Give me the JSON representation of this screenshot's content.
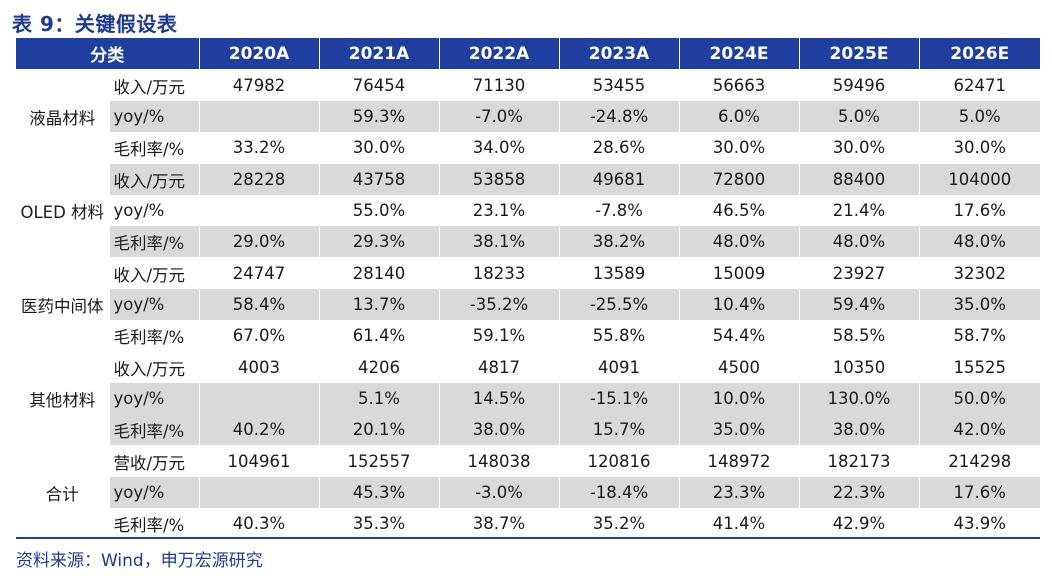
{
  "title": "表 9：关键假设表",
  "header": [
    "分类",
    "2020A",
    "2021A",
    "2022A",
    "2023A",
    "2024E",
    "2025E",
    "2026E"
  ],
  "groups": [
    {
      "name": "液晶材料",
      "rows": [
        {
          "metric": "收入/万元",
          "values": [
            "47982",
            "76454",
            "71130",
            "53455",
            "56663",
            "59496",
            "62471"
          ]
        },
        {
          "metric": "yoy/%",
          "values": [
            "",
            "59.3%",
            "-7.0%",
            "-24.8%",
            "6.0%",
            "5.0%",
            "5.0%"
          ]
        },
        {
          "metric": "毛利率/%",
          "values": [
            "33.2%",
            "30.0%",
            "34.0%",
            "28.6%",
            "30.0%",
            "30.0%",
            "30.0%"
          ]
        }
      ]
    },
    {
      "name": "OLED 材料",
      "rows": [
        {
          "metric": "收入/万元",
          "values": [
            "28228",
            "43758",
            "53858",
            "49681",
            "72800",
            "88400",
            "104000"
          ]
        },
        {
          "metric": "yoy/%",
          "values": [
            "",
            "55.0%",
            "23.1%",
            "-7.8%",
            "46.5%",
            "21.4%",
            "17.6%"
          ]
        },
        {
          "metric": "毛利率/%",
          "values": [
            "29.0%",
            "29.3%",
            "38.1%",
            "38.2%",
            "48.0%",
            "48.0%",
            "48.0%"
          ]
        }
      ]
    },
    {
      "name": "医药中间体",
      "rows": [
        {
          "metric": "收入/万元",
          "values": [
            "24747",
            "28140",
            "18233",
            "13589",
            "15009",
            "23927",
            "32302"
          ]
        },
        {
          "metric": "yoy/%",
          "values": [
            "58.4%",
            "13.7%",
            "-35.2%",
            "-25.5%",
            "10.4%",
            "59.4%",
            "35.0%"
          ]
        },
        {
          "metric": "毛利率/%",
          "values": [
            "67.0%",
            "61.4%",
            "59.1%",
            "55.8%",
            "54.4%",
            "58.5%",
            "58.7%"
          ]
        }
      ]
    },
    {
      "name": "其他材料",
      "rows": [
        {
          "metric": "收入/万元",
          "values": [
            "4003",
            "4206",
            "4817",
            "4091",
            "4500",
            "10350",
            "15525"
          ]
        },
        {
          "metric": "yoy/%",
          "values": [
            "",
            "5.1%",
            "14.5%",
            "-15.1%",
            "10.0%",
            "130.0%",
            "50.0%"
          ]
        },
        {
          "metric": "毛利率/%",
          "values": [
            "40.2%",
            "20.1%",
            "38.0%",
            "15.7%",
            "35.0%",
            "38.0%",
            "42.0%"
          ]
        }
      ]
    },
    {
      "name": "合计",
      "rows": [
        {
          "metric": "营收/万元",
          "values": [
            "104961",
            "152557",
            "148038",
            "120816",
            "148972",
            "182173",
            "214298"
          ]
        },
        {
          "metric": "yoy/%",
          "values": [
            "",
            "45.3%",
            "-3.0%",
            "-18.4%",
            "23.3%",
            "22.3%",
            "17.6%"
          ]
        },
        {
          "metric": "毛利率/%",
          "values": [
            "40.3%",
            "35.3%",
            "38.7%",
            "35.2%",
            "41.4%",
            "42.9%",
            "43.9%"
          ]
        }
      ]
    }
  ],
  "source": "资料来源：Wind，申万宏源研究",
  "colors": {
    "header_bg": "#1f3fa0",
    "title": "#1f3a93",
    "shade": "#d9d9d9"
  }
}
